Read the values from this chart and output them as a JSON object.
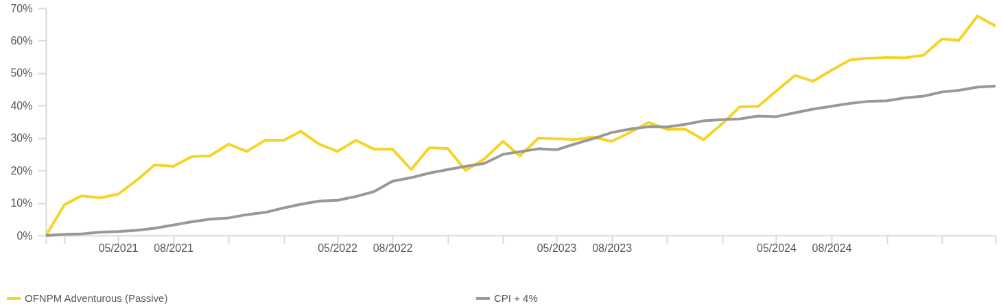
{
  "chart_data": {
    "type": "line",
    "x": [
      "2021-01",
      "2021-02",
      "2021-03",
      "2021-04",
      "2021-05",
      "2021-06",
      "2021-07",
      "2021-08",
      "2021-09",
      "2021-10",
      "2021-11",
      "2021-12",
      "2022-01",
      "2022-02",
      "2022-03",
      "2022-04",
      "2022-05",
      "2022-06",
      "2022-07",
      "2022-08",
      "2022-09",
      "2022-10",
      "2022-11",
      "2022-12",
      "2023-01",
      "2023-02",
      "2023-03",
      "2023-04",
      "2023-05",
      "2023-06",
      "2023-07",
      "2023-08",
      "2023-09",
      "2023-10",
      "2023-11",
      "2023-12",
      "2024-01",
      "2024-02",
      "2024-03",
      "2024-04",
      "2024-05",
      "2024-06",
      "2024-07",
      "2024-08",
      "2024-09",
      "2024-10",
      "2024-11",
      "2024-12",
      "2025-01",
      "2025-02",
      "2025-03",
      "2025-04",
      "2025-05"
    ],
    "series": [
      {
        "name": "OFNPM Adventurous (Passive)",
        "color": "#f5d327",
        "values": [
          0,
          9.5,
          12.2,
          11.6,
          12.7,
          17.0,
          21.7,
          21.3,
          24.3,
          24.5,
          28.1,
          25.9,
          29.3,
          29.3,
          32.1,
          28.1,
          25.9,
          29.3,
          26.6,
          26.6,
          20.3,
          27.0,
          26.8,
          20.0,
          23.6,
          29.0,
          24.5,
          30.0,
          29.8,
          29.5,
          30.3,
          29.0,
          31.8,
          34.8,
          32.7,
          32.8,
          29.5,
          34.4,
          39.6,
          39.8,
          44.5,
          49.3,
          47.5,
          50.9,
          54.1,
          54.6,
          54.8,
          54.7,
          55.5,
          60.5,
          60.1,
          67.6,
          64.5
        ]
      },
      {
        "name": "CPI + 4%",
        "color": "#999999",
        "values": [
          0,
          0.3,
          0.5,
          1.0,
          1.2,
          1.6,
          2.2,
          3.2,
          4.2,
          5.0,
          5.4,
          6.4,
          7.1,
          8.5,
          9.6,
          10.6,
          10.8,
          12.0,
          13.5,
          16.7,
          17.8,
          19.2,
          20.3,
          21.3,
          22.2,
          25.0,
          25.8,
          26.7,
          26.4,
          28.2,
          29.8,
          31.7,
          32.8,
          33.5,
          33.4,
          34.2,
          35.3,
          35.7,
          35.9,
          36.8,
          36.6,
          37.8,
          38.9,
          39.8,
          40.7,
          41.3,
          41.5,
          42.4,
          42.9,
          44.2,
          44.7,
          45.7,
          46.0
        ]
      }
    ],
    "xlim": [
      "2021-01",
      "2025-05"
    ],
    "xticks": [
      {
        "value": "2021-01",
        "label": null
      },
      {
        "value": "2021-02",
        "label": null
      },
      {
        "value": "2021-05",
        "label": "05/2021"
      },
      {
        "value": "2021-08",
        "label": "08/2021"
      },
      {
        "value": "2021-11",
        "label": null
      },
      {
        "value": "2022-02",
        "label": null
      },
      {
        "value": "2022-05",
        "label": "05/2022"
      },
      {
        "value": "2022-08",
        "label": "08/2022"
      },
      {
        "value": "2022-11",
        "label": null
      },
      {
        "value": "2023-02",
        "label": null
      },
      {
        "value": "2023-05",
        "label": "05/2023"
      },
      {
        "value": "2023-08",
        "label": "08/2023"
      },
      {
        "value": "2023-11",
        "label": null
      },
      {
        "value": "2024-02",
        "label": null
      },
      {
        "value": "2024-05",
        "label": "05/2024"
      },
      {
        "value": "2024-08",
        "label": "08/2024"
      },
      {
        "value": "2024-11",
        "label": null
      },
      {
        "value": "2025-02",
        "label": null
      },
      {
        "value": "2025-05",
        "label": null
      }
    ],
    "ylim": [
      0,
      70
    ],
    "yticks": [
      {
        "value": 0,
        "label": "0%"
      },
      {
        "value": 10,
        "label": "10%"
      },
      {
        "value": 20,
        "label": "20%"
      },
      {
        "value": 30,
        "label": "30%"
      },
      {
        "value": 40,
        "label": "40%"
      },
      {
        "value": 50,
        "label": "50%"
      },
      {
        "value": 60,
        "label": "60%"
      },
      {
        "value": 70,
        "label": "70%"
      }
    ],
    "grid": false,
    "legend": "bottom",
    "marker": "none",
    "line_style": "solid"
  }
}
